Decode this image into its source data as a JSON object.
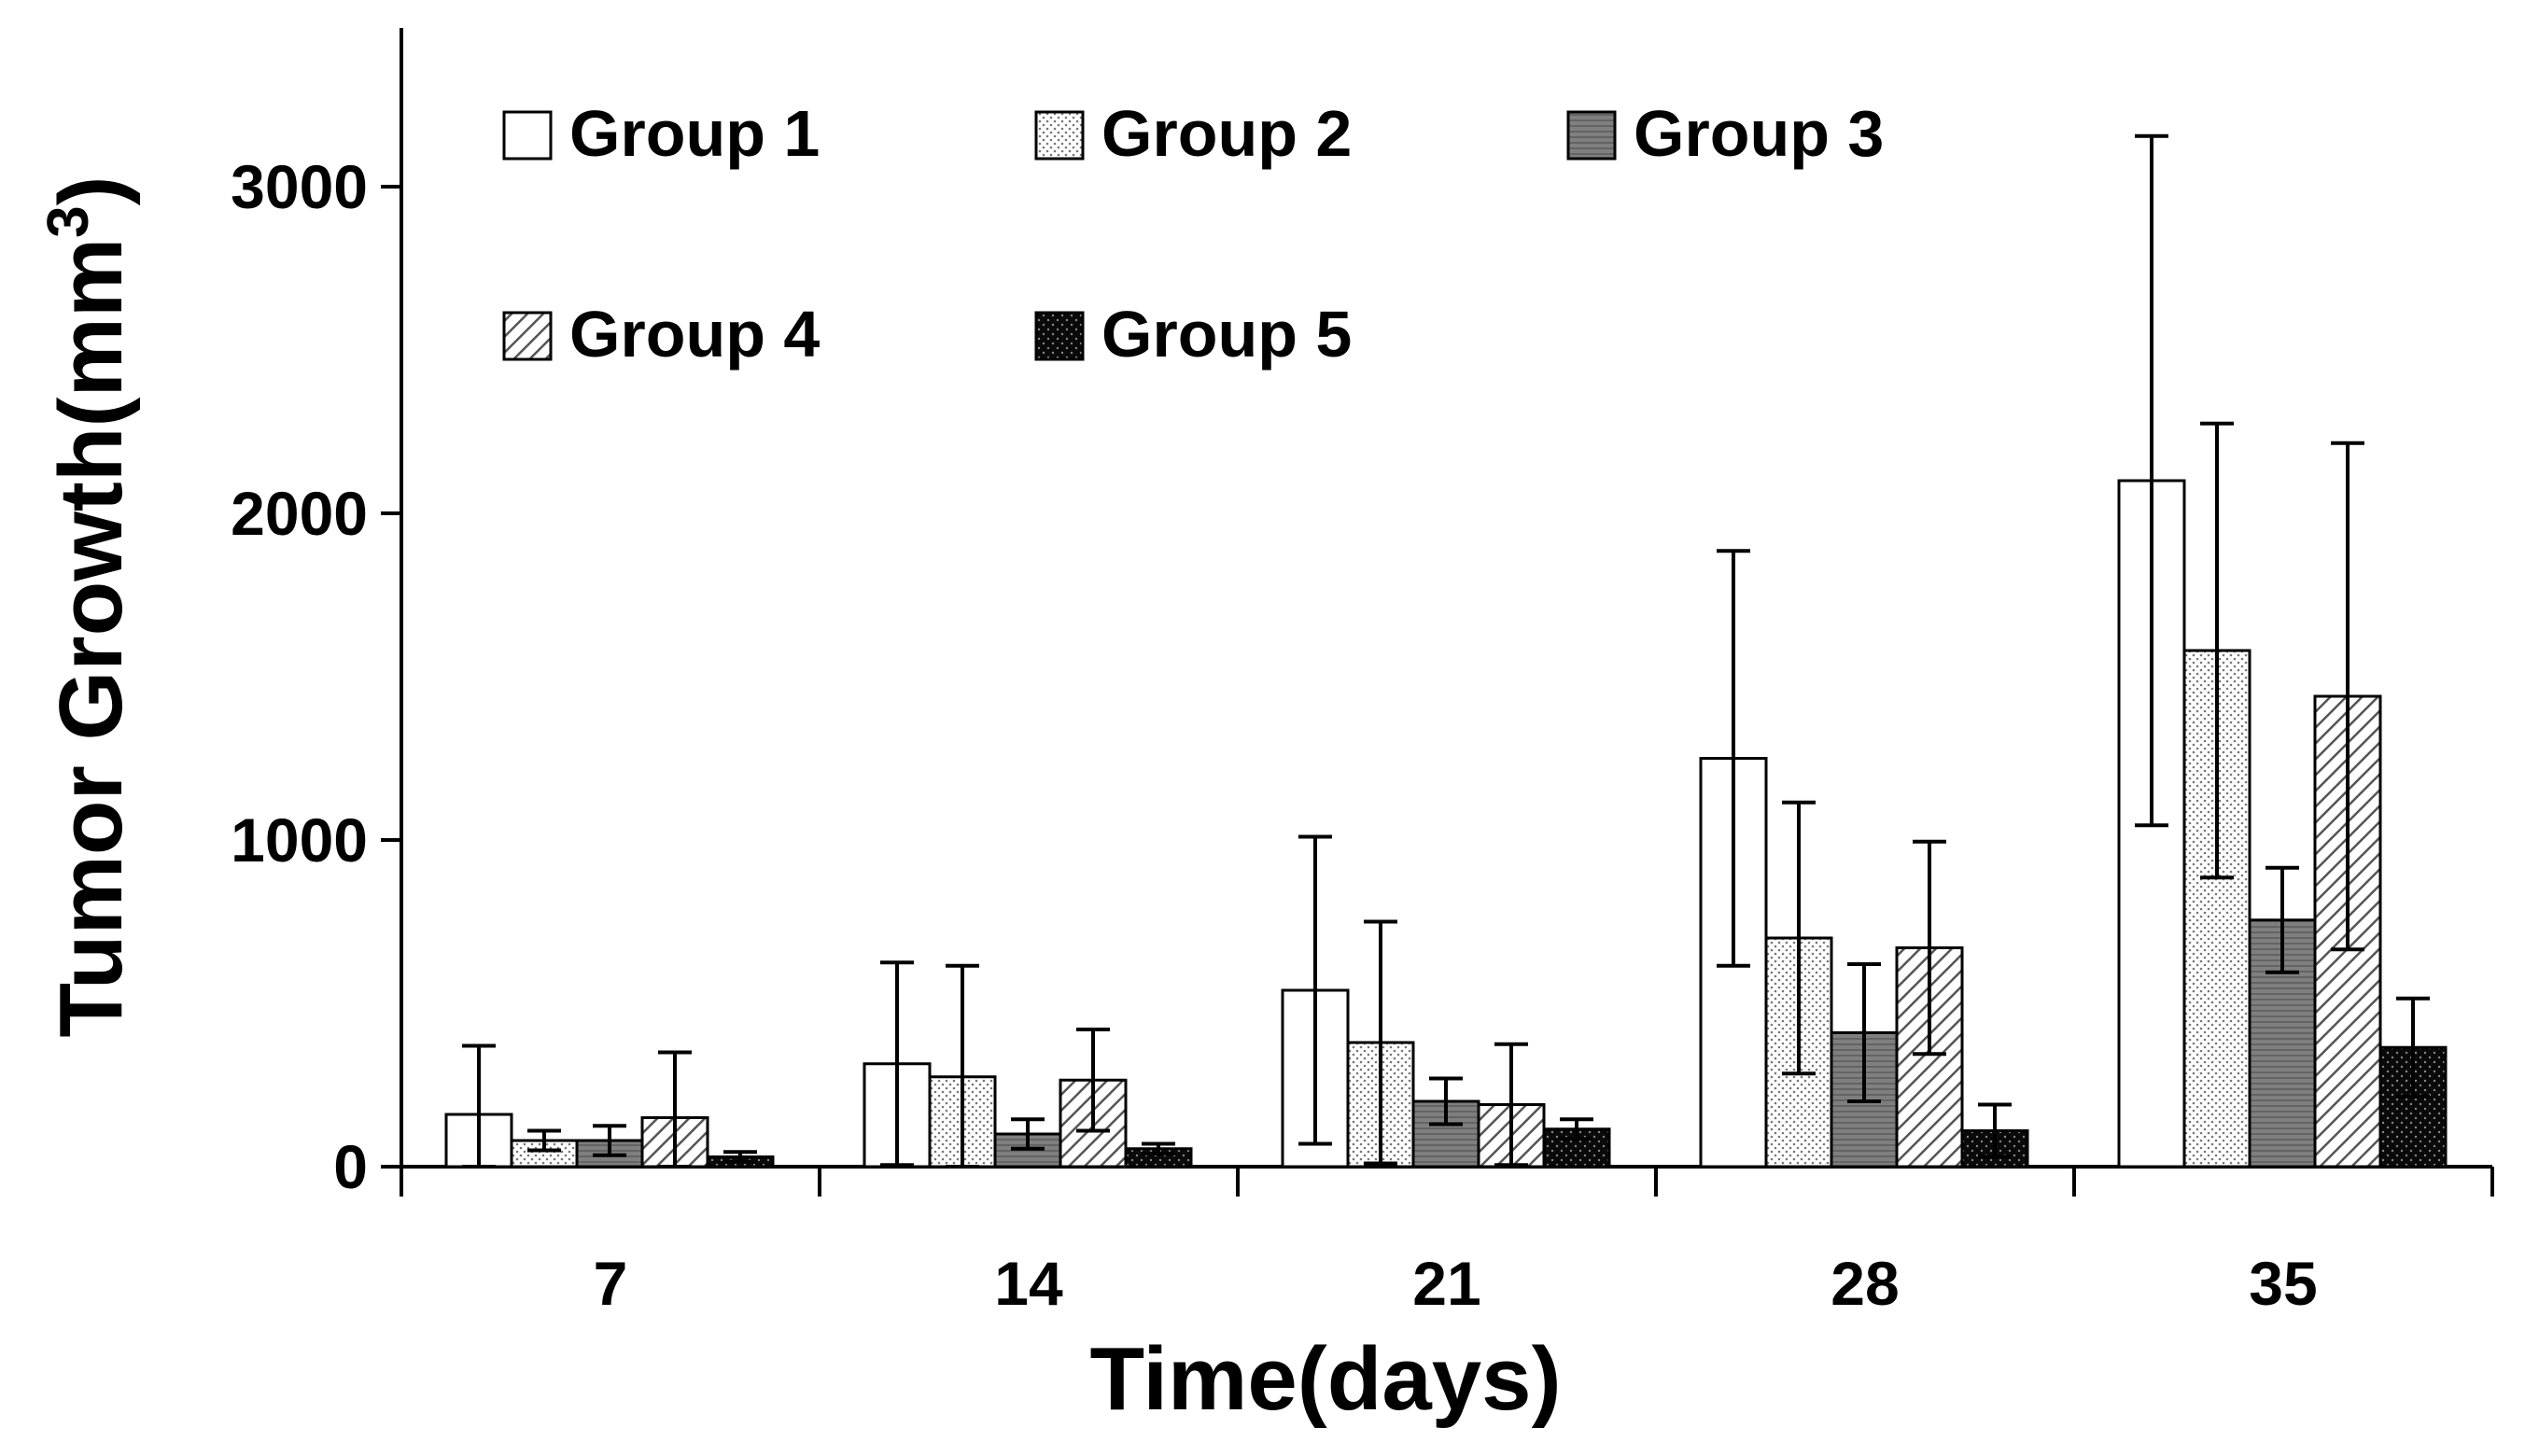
{
  "chart_data": {
    "type": "bar",
    "title": "",
    "xlabel": "Time(days)",
    "ylabel": "Tumor Growth(mm³)",
    "ylabel_base": "Tumor Growth(mm",
    "ylabel_sup": "3",
    "ylabel_close": ")",
    "ylim": [
      0,
      3500
    ],
    "yticks": [
      0,
      1000,
      2000,
      3000
    ],
    "ytick_labels": [
      "0",
      "1000",
      "2000",
      "3000"
    ],
    "categories": [
      "7",
      "14",
      "21",
      "28",
      "35"
    ],
    "legend_position": "top-left",
    "series": [
      {
        "name": "Group 1",
        "pattern": "white",
        "values": [
          160,
          315,
          540,
          1250,
          2100
        ],
        "errors": [
          210,
          310,
          470,
          635,
          1055
        ]
      },
      {
        "name": "Group 2",
        "pattern": "dots",
        "values": [
          80,
          275,
          380,
          700,
          1580
        ],
        "errors": [
          30,
          340,
          370,
          415,
          695
        ]
      },
      {
        "name": "Group 3",
        "pattern": "dark",
        "values": [
          80,
          100,
          200,
          410,
          755
        ],
        "errors": [
          45,
          45,
          70,
          210,
          160
        ]
      },
      {
        "name": "Group 4",
        "pattern": "hatch",
        "values": [
          150,
          265,
          190,
          670,
          1440
        ],
        "errors": [
          200,
          155,
          185,
          325,
          775
        ]
      },
      {
        "name": "Group 5",
        "pattern": "black",
        "values": [
          30,
          55,
          115,
          110,
          365
        ],
        "errors": [
          15,
          15,
          30,
          80,
          150
        ]
      }
    ]
  }
}
